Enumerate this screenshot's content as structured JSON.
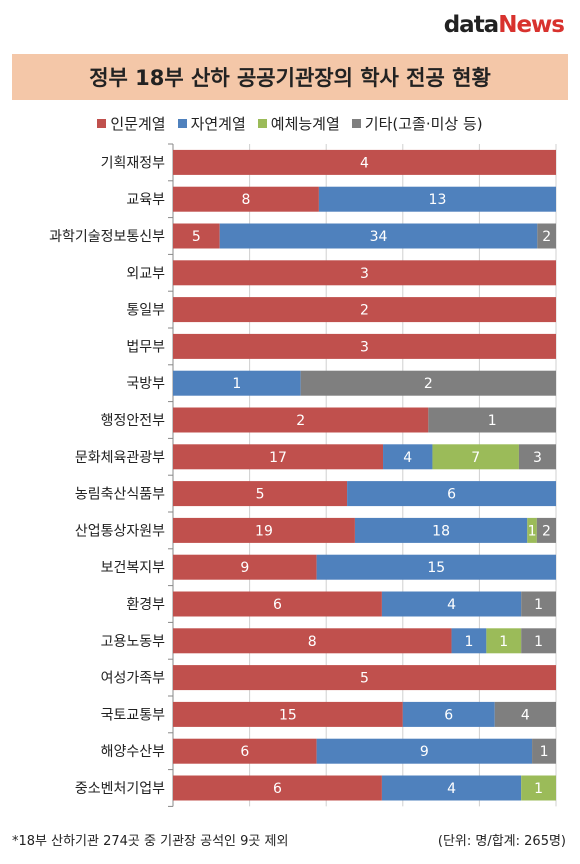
{
  "logo": {
    "part1": "data",
    "part2": "News"
  },
  "chart_data": {
    "type": "bar",
    "orientation": "horizontal",
    "stacked": "100%",
    "title": "정부 18부 산하 공공기관장의 학사 전공 현황",
    "categories": [
      "기획재정부",
      "교육부",
      "과학기술정보통신부",
      "외교부",
      "통일부",
      "법무부",
      "국방부",
      "행정안전부",
      "문화체육관광부",
      "농림축산식품부",
      "산업통상자원부",
      "보건복지부",
      "환경부",
      "고용노동부",
      "여성가족부",
      "국토교통부",
      "해양수산부",
      "중소벤처기업부"
    ],
    "series": [
      {
        "name": "인문계열",
        "color": "#c0504d",
        "values": [
          4,
          8,
          5,
          3,
          2,
          3,
          0,
          2,
          17,
          5,
          19,
          9,
          6,
          8,
          5,
          15,
          6,
          6
        ]
      },
      {
        "name": "자연계열",
        "color": "#4f81bd",
        "values": [
          0,
          13,
          34,
          0,
          0,
          0,
          1,
          0,
          4,
          6,
          18,
          15,
          4,
          1,
          0,
          6,
          9,
          4
        ]
      },
      {
        "name": "예체능계열",
        "color": "#9bbb59",
        "values": [
          0,
          0,
          0,
          0,
          0,
          0,
          0,
          0,
          7,
          0,
          1,
          0,
          0,
          1,
          0,
          0,
          0,
          1
        ]
      },
      {
        "name": "기타(고졸·미상 등)",
        "color": "#7f7f7f",
        "values": [
          0,
          0,
          2,
          0,
          0,
          0,
          2,
          1,
          3,
          0,
          2,
          0,
          1,
          1,
          0,
          4,
          1,
          0
        ]
      }
    ],
    "grid": true,
    "legend_position": "top"
  },
  "footnote": "*18부 산하기관 274곳 중 기관장 공석인 9곳 제외",
  "unit_note": "(단위: 명/합계: 265명)"
}
